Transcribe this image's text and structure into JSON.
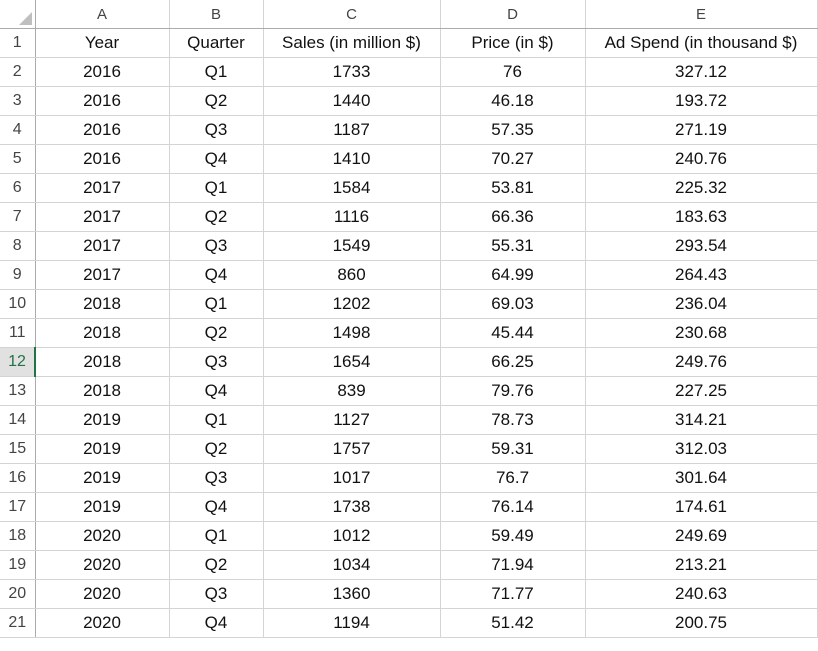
{
  "columns": [
    "A",
    "B",
    "C",
    "D",
    "E"
  ],
  "header_row": {
    "row_number": "1",
    "cells": [
      "Year",
      "Quarter",
      "Sales (in million $)",
      "Price (in $)",
      "Ad Spend (in thousand $)"
    ]
  },
  "selected_row": "12",
  "rows": [
    {
      "n": "2",
      "cells": [
        "2016",
        "Q1",
        "1733",
        "76",
        "327.12"
      ]
    },
    {
      "n": "3",
      "cells": [
        "2016",
        "Q2",
        "1440",
        "46.18",
        "193.72"
      ]
    },
    {
      "n": "4",
      "cells": [
        "2016",
        "Q3",
        "1187",
        "57.35",
        "271.19"
      ]
    },
    {
      "n": "5",
      "cells": [
        "2016",
        "Q4",
        "1410",
        "70.27",
        "240.76"
      ]
    },
    {
      "n": "6",
      "cells": [
        "2017",
        "Q1",
        "1584",
        "53.81",
        "225.32"
      ]
    },
    {
      "n": "7",
      "cells": [
        "2017",
        "Q2",
        "1116",
        "66.36",
        "183.63"
      ]
    },
    {
      "n": "8",
      "cells": [
        "2017",
        "Q3",
        "1549",
        "55.31",
        "293.54"
      ]
    },
    {
      "n": "9",
      "cells": [
        "2017",
        "Q4",
        "860",
        "64.99",
        "264.43"
      ]
    },
    {
      "n": "10",
      "cells": [
        "2018",
        "Q1",
        "1202",
        "69.03",
        "236.04"
      ]
    },
    {
      "n": "11",
      "cells": [
        "2018",
        "Q2",
        "1498",
        "45.44",
        "230.68"
      ]
    },
    {
      "n": "12",
      "cells": [
        "2018",
        "Q3",
        "1654",
        "66.25",
        "249.76"
      ]
    },
    {
      "n": "13",
      "cells": [
        "2018",
        "Q4",
        "839",
        "79.76",
        "227.25"
      ]
    },
    {
      "n": "14",
      "cells": [
        "2019",
        "Q1",
        "1127",
        "78.73",
        "314.21"
      ]
    },
    {
      "n": "15",
      "cells": [
        "2019",
        "Q2",
        "1757",
        "59.31",
        "312.03"
      ]
    },
    {
      "n": "16",
      "cells": [
        "2019",
        "Q3",
        "1017",
        "76.7",
        "301.64"
      ]
    },
    {
      "n": "17",
      "cells": [
        "2019",
        "Q4",
        "1738",
        "76.14",
        "174.61"
      ]
    },
    {
      "n": "18",
      "cells": [
        "2020",
        "Q1",
        "1012",
        "59.49",
        "249.69"
      ]
    },
    {
      "n": "19",
      "cells": [
        "2020",
        "Q2",
        "1034",
        "71.94",
        "213.21"
      ]
    },
    {
      "n": "20",
      "cells": [
        "2020",
        "Q3",
        "1360",
        "71.77",
        "240.63"
      ]
    },
    {
      "n": "21",
      "cells": [
        "2020",
        "Q4",
        "1194",
        "51.42",
        "200.75"
      ]
    }
  ]
}
